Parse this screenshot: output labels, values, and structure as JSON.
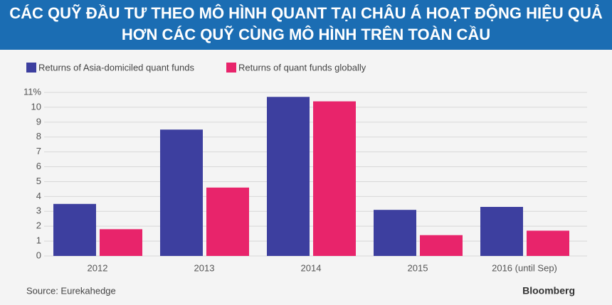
{
  "chart_data": {
    "type": "bar",
    "title": [
      "CÁC QUỸ ĐẦU TƯ THEO MÔ HÌNH QUANT TẠI CHÂU Á HOẠT ĐỘNG HIỆU QUẢ",
      "HƠN CÁC QUỸ CÙNG MÔ HÌNH TRÊN TOÀN CẦU"
    ],
    "categories": [
      "2012",
      "2013",
      "2014",
      "2015",
      "2016 (until Sep)"
    ],
    "series": [
      {
        "name": "Returns of Asia-domiciled quant funds",
        "color": "#3d3f9f",
        "values": [
          3.5,
          8.5,
          10.7,
          3.1,
          3.3
        ]
      },
      {
        "name": "Returns of quant funds globally",
        "color": "#e8246b",
        "values": [
          1.8,
          4.6,
          10.4,
          1.4,
          1.7
        ]
      }
    ],
    "ylim": [
      0,
      11
    ],
    "yticks": [
      0,
      1,
      2,
      3,
      4,
      5,
      6,
      7,
      8,
      9,
      10,
      {
        "value": 11,
        "label": "11%"
      }
    ],
    "grid": true,
    "source": "Source: Eurekahedge",
    "brand": "Bloomberg"
  }
}
